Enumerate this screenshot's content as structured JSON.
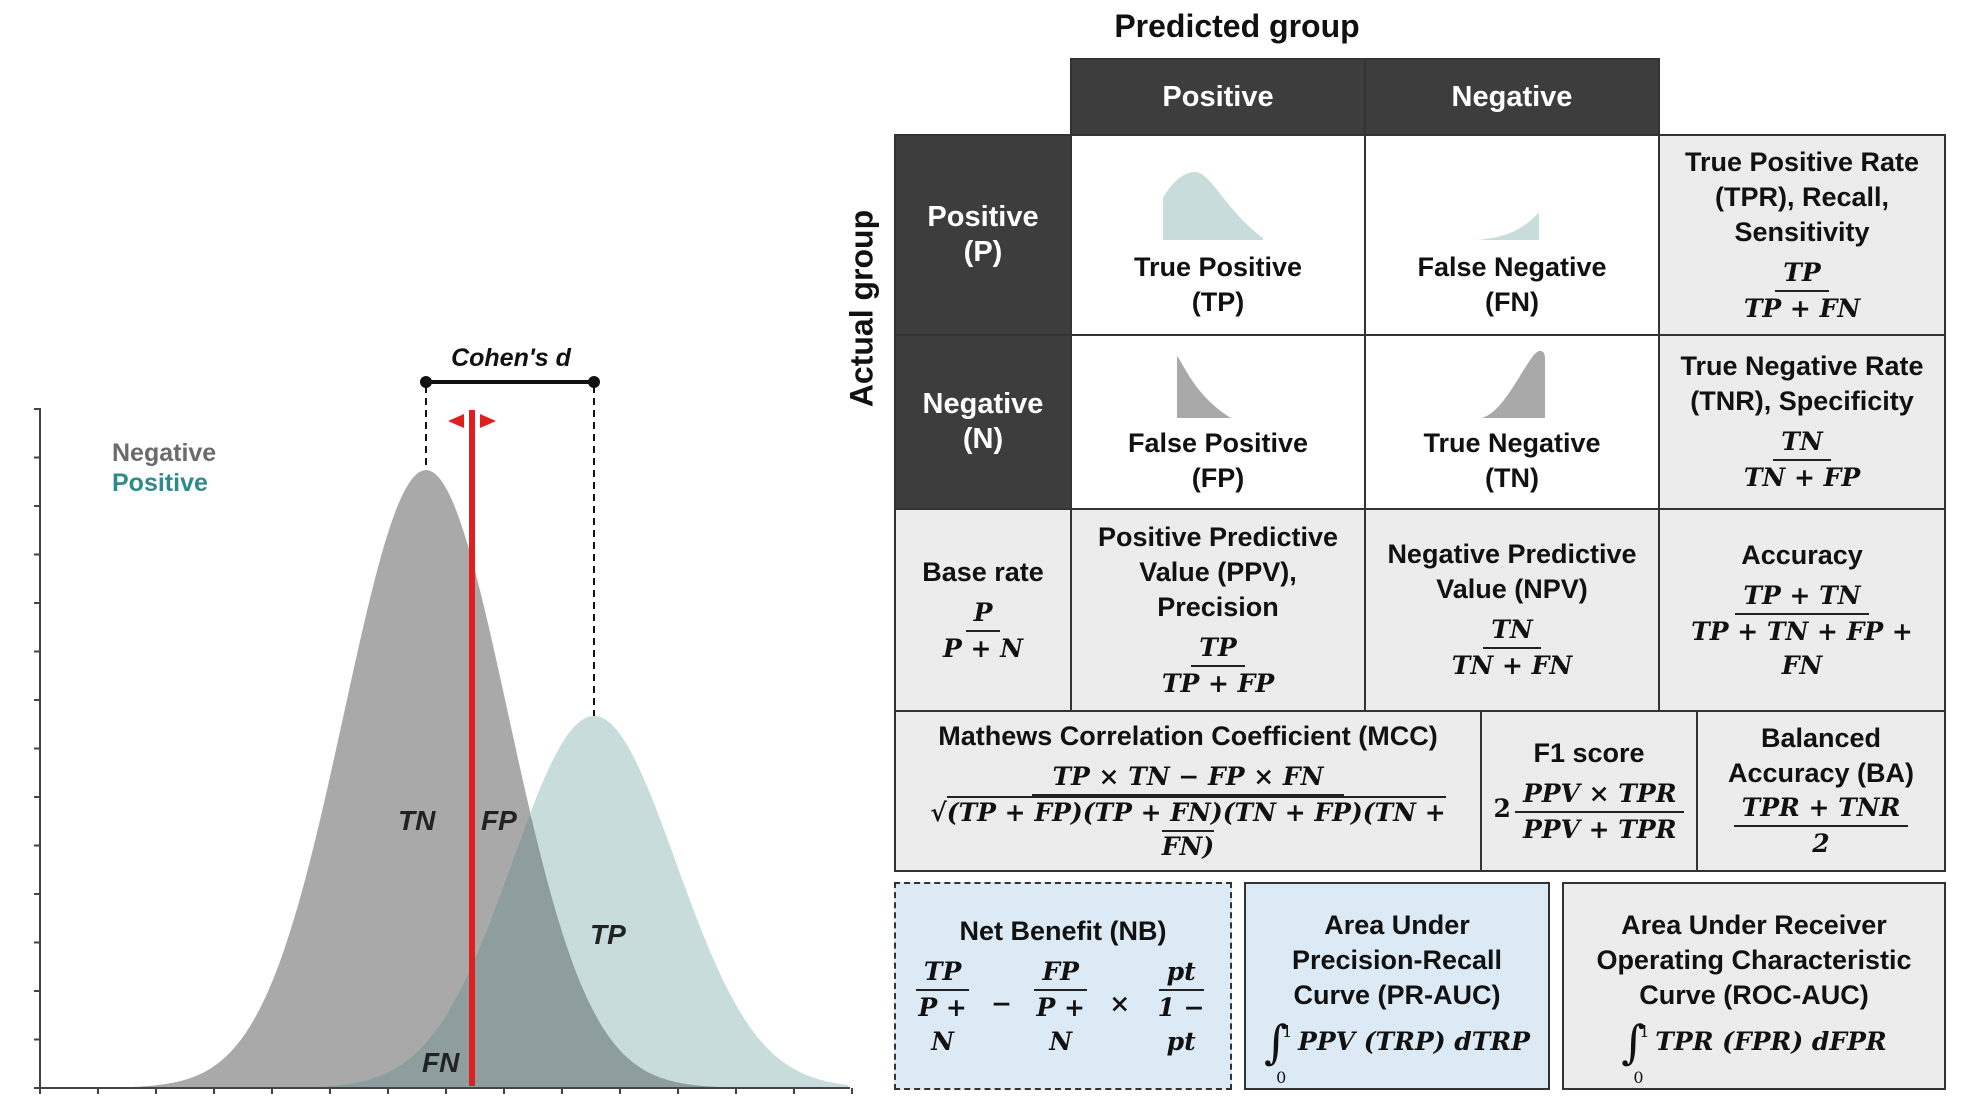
{
  "plot": {
    "legend_negative": "Negative",
    "legend_positive": "Positive",
    "effect_label": "Cohen's d",
    "region_tn": "TN",
    "region_fp": "FP",
    "region_tp": "TP",
    "region_fn": "FN",
    "colors": {
      "negative": "#a9a9a9",
      "positive": "#c8dcdc",
      "overlap": "#8e9e9e",
      "threshold": "#e02020",
      "legend_negative": "#6b6b6b",
      "legend_positive": "#2f8a8a"
    }
  },
  "matrix": {
    "predicted_title": "Predicted group",
    "actual_title": "Actual group",
    "pred_positive": "Positive",
    "pred_negative": "Negative",
    "act_positive_line1": "Positive",
    "act_positive_line2": "(P)",
    "act_negative_line1": "Negative",
    "act_negative_line2": "(N)",
    "tp_line1": "True Positive",
    "tp_line2": "(TP)",
    "fn_line1": "False Negative",
    "fn_line2": "(FN)",
    "fp_line1": "False Positive",
    "fp_line2": "(FP)",
    "tn_line1": "True Negative",
    "tn_line2": "(TN)",
    "tpr_label": [
      "True Positive Rate",
      "(TPR), Recall,",
      "Sensitivity"
    ],
    "tpr_num": "TP",
    "tpr_den": "TP + FN",
    "tnr_label": [
      "True Negative Rate",
      "(TNR), Specificity"
    ],
    "tnr_num": "TN",
    "tnr_den": "TN + FP",
    "base_label": "Base rate",
    "base_num": "P",
    "base_den": "P + N",
    "ppv_label": [
      "Positive Predictive",
      "Value (PPV),",
      "Precision"
    ],
    "ppv_num": "TP",
    "ppv_den": "TP + FP",
    "npv_label": [
      "Negative Predictive",
      "Value (NPV)"
    ],
    "npv_num": "TN",
    "npv_den": "TN + FN",
    "acc_label": "Accuracy",
    "acc_num": "TP + TN",
    "acc_den": "TP + TN + FP + FN",
    "mcc_label": "Mathews Correlation Coefficient (MCC)",
    "mcc_num": "TP × TN  − FP × FN",
    "mcc_den": "(TP + FP)(TP + FN)(TN + FP)(TN + FN)",
    "f1_label": "F1 score",
    "f1_coef": "2",
    "f1_num": "PPV × TPR",
    "f1_den": "PPV + TPR",
    "ba_label": [
      "Balanced",
      "Accuracy (BA)"
    ],
    "ba_num": "TPR + TNR",
    "ba_den": "2",
    "nb_label": "Net Benefit (NB)",
    "nb_f1_num": "TP",
    "nb_f1_den": "P + N",
    "nb_f2_num": "FP",
    "nb_f2_den": "P + N",
    "nb_f3_num": "pt",
    "nb_f3_den": "1 − pt",
    "prauc_label": [
      "Area Under",
      "Precision-Recall",
      "Curve (PR-AUC)"
    ],
    "prauc_formula": "PPV (TRP) dTRP",
    "rocauc_label": [
      "Area Under Receiver",
      "Operating Characteristic",
      "Curve (ROC-AUC)"
    ],
    "rocauc_formula": "TPR (FPR) dFPR",
    "int_upper": "1",
    "int_lower": "0"
  }
}
